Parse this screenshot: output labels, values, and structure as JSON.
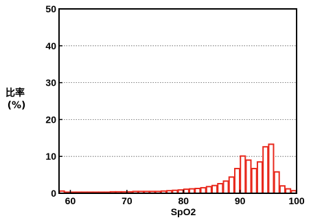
{
  "chart_data": {
    "type": "bar",
    "xlabel": "SpO2",
    "ylabel": [
      "比率",
      "(%)"
    ],
    "xlim": [
      58,
      100
    ],
    "ylim": [
      0,
      50
    ],
    "x_ticks": [
      60,
      70,
      80,
      90,
      100
    ],
    "y_ticks": [
      0,
      10,
      20,
      30,
      40,
      50
    ],
    "grid": "horizontal dotted",
    "bar_color": "#e8281c",
    "bin_width": 1,
    "series": [
      {
        "x": [
          58,
          59,
          60,
          61,
          62,
          63,
          64,
          65,
          66,
          67,
          68,
          69,
          70,
          71,
          72,
          73,
          74,
          75,
          76,
          77,
          78,
          79,
          80,
          81,
          82,
          83,
          84,
          85,
          86,
          87,
          88,
          89,
          90,
          91,
          92,
          93,
          94,
          95,
          96,
          97,
          98,
          99
        ],
        "values": [
          0.6,
          0.3,
          0.3,
          0.3,
          0.3,
          0.3,
          0.3,
          0.3,
          0.3,
          0.4,
          0.4,
          0.4,
          0.4,
          0.5,
          0.5,
          0.5,
          0.5,
          0.5,
          0.6,
          0.7,
          0.8,
          0.9,
          1.1,
          1.2,
          1.3,
          1.5,
          1.8,
          2.1,
          2.6,
          3.3,
          4.4,
          6.7,
          10.1,
          9.0,
          6.7,
          8.5,
          12.6,
          13.3,
          5.8,
          2.0,
          1.2,
          0.7
        ]
      }
    ]
  }
}
